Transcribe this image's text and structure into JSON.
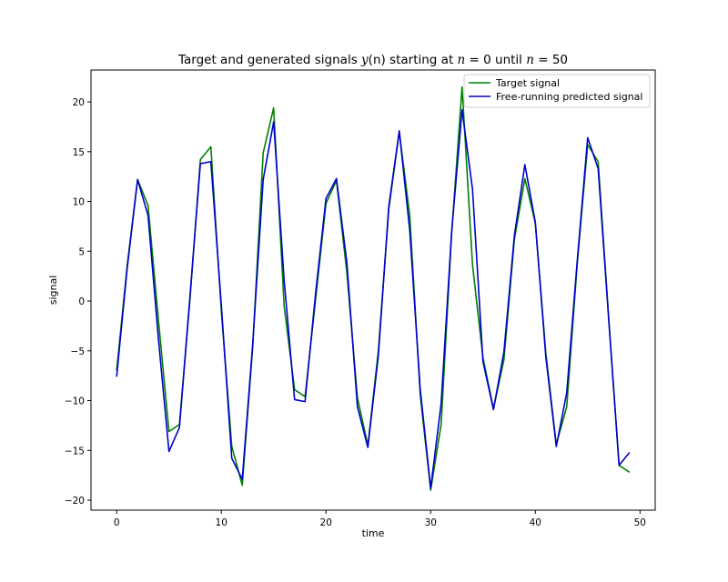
{
  "chart_data": {
    "type": "line",
    "title": "Target and generated signals y(n) starting at n = 0 until n = 50",
    "title_parts": {
      "prefix": "Target and generated signals ",
      "y": "y",
      "n_paren": "(n)",
      "middle": " starting at ",
      "n1": "n",
      "eq1": " = 0 until ",
      "n2": "n",
      "eq2": " = 50"
    },
    "xlabel": "time",
    "ylabel": "signal",
    "xlim": [
      -2.45,
      51.45
    ],
    "ylim": [
      -21.0,
      23.2
    ],
    "xticks": [
      0,
      10,
      20,
      30,
      40,
      50
    ],
    "yticks": [
      -20,
      -15,
      -10,
      -5,
      0,
      5,
      10,
      15,
      20
    ],
    "grid": false,
    "legend_position": "top-right",
    "x": [
      0,
      1,
      2,
      3,
      4,
      5,
      6,
      7,
      8,
      9,
      10,
      11,
      12,
      13,
      14,
      15,
      16,
      17,
      18,
      19,
      20,
      21,
      22,
      23,
      24,
      25,
      26,
      27,
      28,
      29,
      30,
      31,
      32,
      33,
      34,
      35,
      36,
      37,
      38,
      39,
      40,
      41,
      42,
      43,
      44,
      45,
      46,
      47,
      48,
      49
    ],
    "series": [
      {
        "name": "Target signal",
        "color": "#008000",
        "values": [
          -7.0,
          3.5,
          12.2,
          9.6,
          -2.0,
          -13.1,
          -12.4,
          0.1,
          14.2,
          15.5,
          -1.0,
          -14.6,
          -18.5,
          -4.6,
          14.9,
          19.4,
          -0.5,
          -8.9,
          -9.6,
          0.1,
          9.8,
          12.1,
          2.8,
          -9.7,
          -14.5,
          -5.0,
          9.2,
          17.0,
          8.6,
          -9.4,
          -19.0,
          -12.4,
          6.7,
          21.5,
          3.6,
          -5.7,
          -10.8,
          -5.9,
          6.2,
          12.3,
          7.8,
          -5.2,
          -14.4,
          -10.6,
          3.7,
          15.7,
          14.0,
          -1.6,
          -16.5,
          -17.2
        ]
      },
      {
        "name": "Free-running predicted signal",
        "color": "#0000cc",
        "values": [
          -7.6,
          3.2,
          12.2,
          8.6,
          -3.9,
          -15.1,
          -12.7,
          0.4,
          13.8,
          14.0,
          -0.4,
          -15.8,
          -17.9,
          -4.3,
          12.2,
          18.0,
          2.1,
          -9.9,
          -10.1,
          0.7,
          10.3,
          12.3,
          3.8,
          -10.6,
          -14.7,
          -5.5,
          9.5,
          17.1,
          7.1,
          -8.8,
          -18.8,
          -10.3,
          6.9,
          19.2,
          11.2,
          -6.1,
          -10.9,
          -5.1,
          6.6,
          13.7,
          7.9,
          -5.6,
          -14.6,
          -9.2,
          4.0,
          16.4,
          13.3,
          -1.7,
          -16.5,
          -15.2
        ]
      }
    ]
  }
}
